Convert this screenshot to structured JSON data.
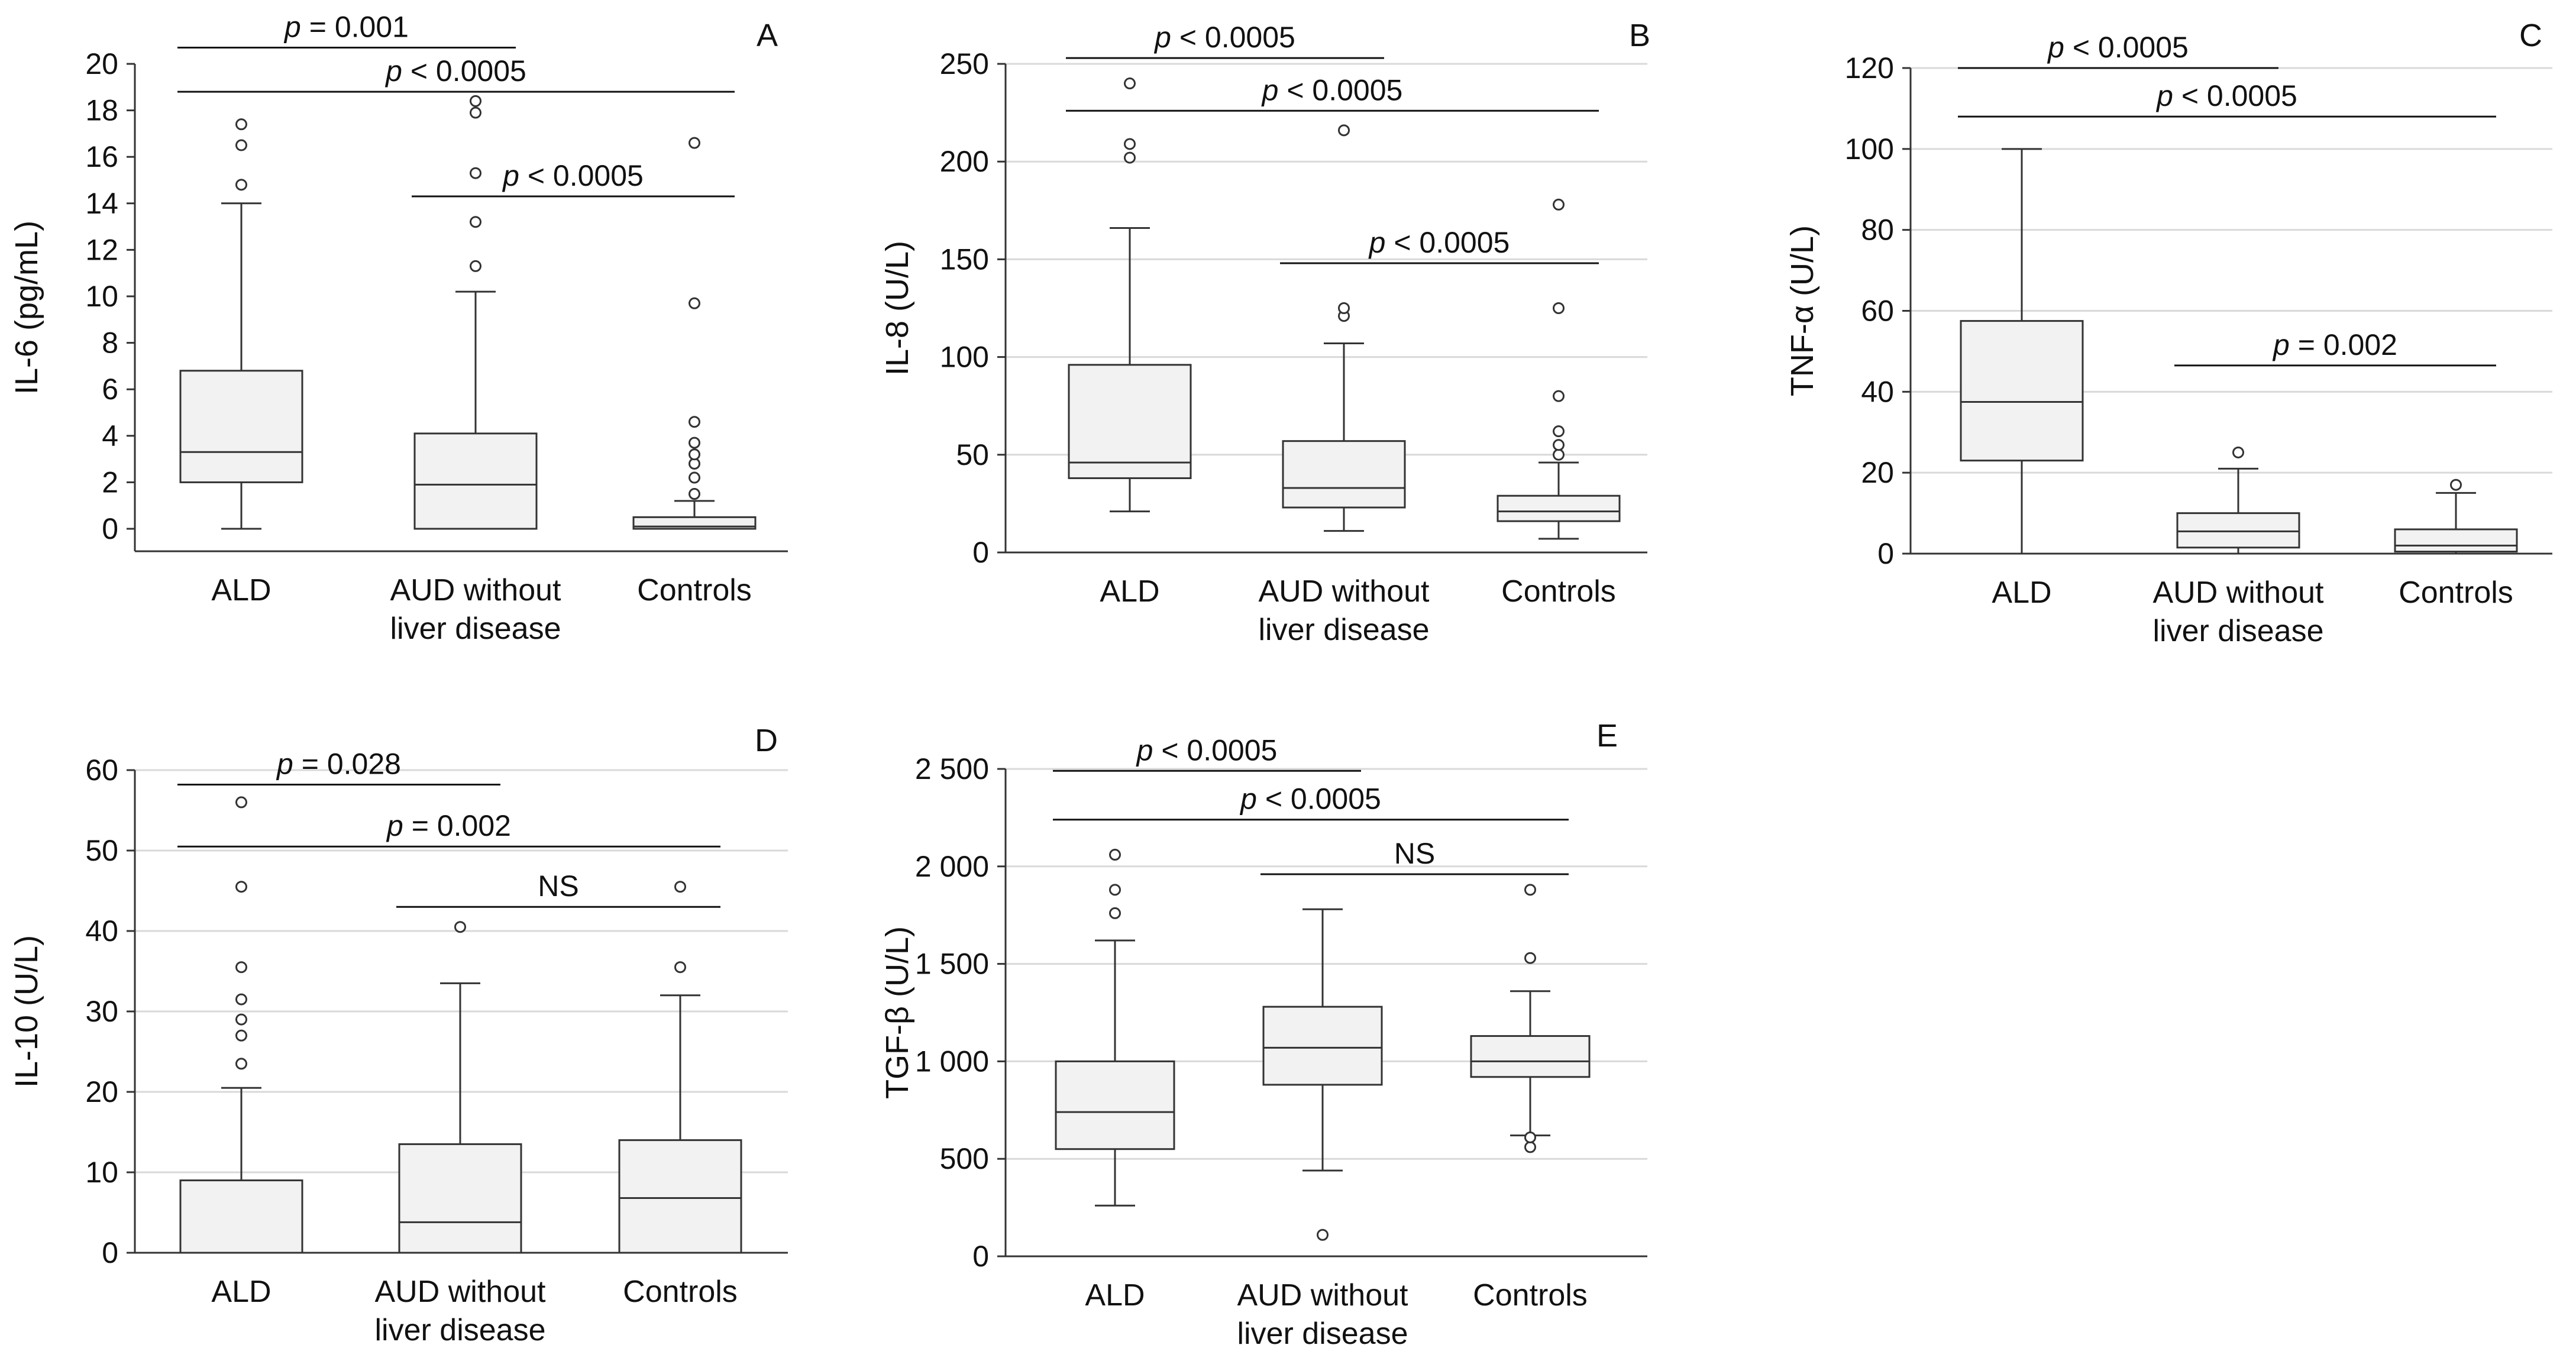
{
  "chart_data": [
    {
      "type": "box",
      "panel": "A",
      "ylabel": "IL-6 (pg/mL)",
      "categories": [
        "ALD",
        "AUD without|liver disease",
        "Controls"
      ],
      "yticks": [
        "0",
        "2",
        "4",
        "6",
        "8",
        "10",
        "12",
        "14",
        "16",
        "18",
        "20"
      ],
      "ylim": [
        -1,
        20
      ],
      "grid": false,
      "boxes": [
        {
          "min": 0,
          "q1": 2.0,
          "median": 3.3,
          "q3": 6.8,
          "max": 14.0,
          "outliers": [
            14.8,
            16.5,
            17.4
          ]
        },
        {
          "min": 0,
          "q1": 0,
          "median": 1.9,
          "q3": 4.1,
          "max": 10.2,
          "outliers": [
            11.3,
            13.2,
            15.3,
            17.9,
            18.4
          ]
        },
        {
          "min": 0,
          "q1": 0,
          "median": 0.1,
          "q3": 0.5,
          "max": 1.2,
          "outliers": [
            1.5,
            2.2,
            2.8,
            3.2,
            3.7,
            4.6,
            9.7,
            16.6
          ]
        }
      ],
      "comparisons": [
        {
          "from": 0,
          "to": 1,
          "y": 20.7,
          "prefix": "p",
          "text": " = 0.001"
        },
        {
          "from": 0,
          "to": 2,
          "y": 18.8,
          "prefix": "p",
          "text": " < 0.0005"
        },
        {
          "from": 1,
          "to": 2,
          "y": 14.3,
          "prefix": "p",
          "text": " < 0.0005"
        }
      ]
    },
    {
      "type": "box",
      "panel": "B",
      "ylabel": "IL-8 (U/L)",
      "categories": [
        "ALD",
        "AUD without|liver disease",
        "Controls"
      ],
      "yticks": [
        "0",
        "50",
        "100",
        "150",
        "200",
        "250"
      ],
      "ylim": [
        0,
        250
      ],
      "grid": true,
      "boxes": [
        {
          "min": 21,
          "q1": 38,
          "median": 46,
          "q3": 96,
          "max": 166,
          "outliers": [
            202,
            209,
            240
          ]
        },
        {
          "min": 11,
          "q1": 23,
          "median": 33,
          "q3": 57,
          "max": 107,
          "outliers": [
            121,
            125,
            216
          ]
        },
        {
          "min": 7,
          "q1": 16,
          "median": 21,
          "q3": 29,
          "max": 46,
          "outliers": [
            50,
            55,
            62,
            80,
            125,
            178
          ]
        }
      ],
      "comparisons": [
        {
          "from": 0,
          "to": 1,
          "y": 253,
          "prefix": "p",
          "text": " < 0.0005"
        },
        {
          "from": 0,
          "to": 2,
          "y": 226,
          "prefix": "p",
          "text": " < 0.0005"
        },
        {
          "from": 1,
          "to": 2,
          "y": 148,
          "prefix": "p",
          "text": " < 0.0005"
        }
      ]
    },
    {
      "type": "box",
      "panel": "C",
      "ylabel": "TNF-α (U/L)",
      "categories": [
        "ALD",
        "AUD without|liver disease",
        "Controls"
      ],
      "yticks": [
        "0",
        "20",
        "40",
        "60",
        "80",
        "100",
        "120"
      ],
      "ylim": [
        0,
        120
      ],
      "grid": true,
      "boxes": [
        {
          "min": 0,
          "q1": 23,
          "median": 37.5,
          "q3": 57.5,
          "max": 100,
          "outliers": []
        },
        {
          "min": 0,
          "q1": 1.5,
          "median": 5.5,
          "q3": 10,
          "max": 21,
          "outliers": [
            25
          ]
        },
        {
          "min": 0,
          "q1": 0.5,
          "median": 2,
          "q3": 6,
          "max": 15,
          "outliers": [
            17
          ]
        }
      ],
      "comparisons": [
        {
          "from": 0,
          "to": 1,
          "y": 120,
          "prefix": "p",
          "text": " < 0.0005"
        },
        {
          "from": 0,
          "to": 2,
          "y": 108,
          "prefix": "p",
          "text": " < 0.0005"
        },
        {
          "from": 1,
          "to": 2,
          "y": 46.5,
          "prefix": "p",
          "text": " = 0.002"
        }
      ]
    },
    {
      "type": "box",
      "panel": "D",
      "ylabel": "IL-10 (U/L)",
      "categories": [
        "ALD",
        "AUD without|liver disease",
        "Controls"
      ],
      "yticks": [
        "0",
        "10",
        "20",
        "30",
        "40",
        "50",
        "60"
      ],
      "ylim": [
        0,
        60
      ],
      "grid": true,
      "boxes": [
        {
          "min": 0,
          "q1": 0,
          "median": 0,
          "q3": 9,
          "max": 20.5,
          "outliers": [
            23.5,
            27,
            29,
            31.5,
            35.5,
            45.5,
            56
          ]
        },
        {
          "min": 0,
          "q1": 0,
          "median": 3.8,
          "q3": 13.5,
          "max": 33.5,
          "outliers": [
            40.5
          ]
        },
        {
          "min": 0,
          "q1": 0,
          "median": 6.8,
          "q3": 14,
          "max": 32,
          "outliers": [
            35.5,
            45.5
          ]
        }
      ],
      "comparisons": [
        {
          "from": 0,
          "to": 1,
          "y": 58.2,
          "prefix": "p",
          "text": " = 0.028"
        },
        {
          "from": 0,
          "to": 2,
          "y": 50.5,
          "prefix": "p",
          "text": " = 0.002"
        },
        {
          "from": 1,
          "to": 2,
          "y": 43,
          "prefix": "",
          "text": "NS"
        }
      ]
    },
    {
      "type": "box",
      "panel": "E",
      "ylabel": "TGF-β (U/L)",
      "categories": [
        "ALD",
        "AUD without|liver disease",
        "Controls"
      ],
      "yticks": [
        "0",
        "500",
        "1 000",
        "1 500",
        "2 000",
        "2 500"
      ],
      "ylim": [
        0,
        2500
      ],
      "grid": true,
      "boxes": [
        {
          "min": 260,
          "q1": 550,
          "median": 740,
          "q3": 1000,
          "max": 1620,
          "outliers": [
            1760,
            1880,
            2060
          ]
        },
        {
          "min": 440,
          "q1": 880,
          "median": 1070,
          "q3": 1280,
          "max": 1780,
          "outliers": [
            110
          ]
        },
        {
          "min": 620,
          "q1": 920,
          "median": 1000,
          "q3": 1130,
          "max": 1360,
          "outliers": [
            560,
            610,
            1530,
            1880
          ]
        }
      ],
      "comparisons": [
        {
          "from": 0,
          "to": 1,
          "y": 2490,
          "prefix": "p",
          "text": " < 0.0005"
        },
        {
          "from": 0,
          "to": 2,
          "y": 2240,
          "prefix": "p",
          "text": " < 0.0005"
        },
        {
          "from": 1,
          "to": 2,
          "y": 1960,
          "prefix": "",
          "text": "NS"
        }
      ]
    }
  ]
}
